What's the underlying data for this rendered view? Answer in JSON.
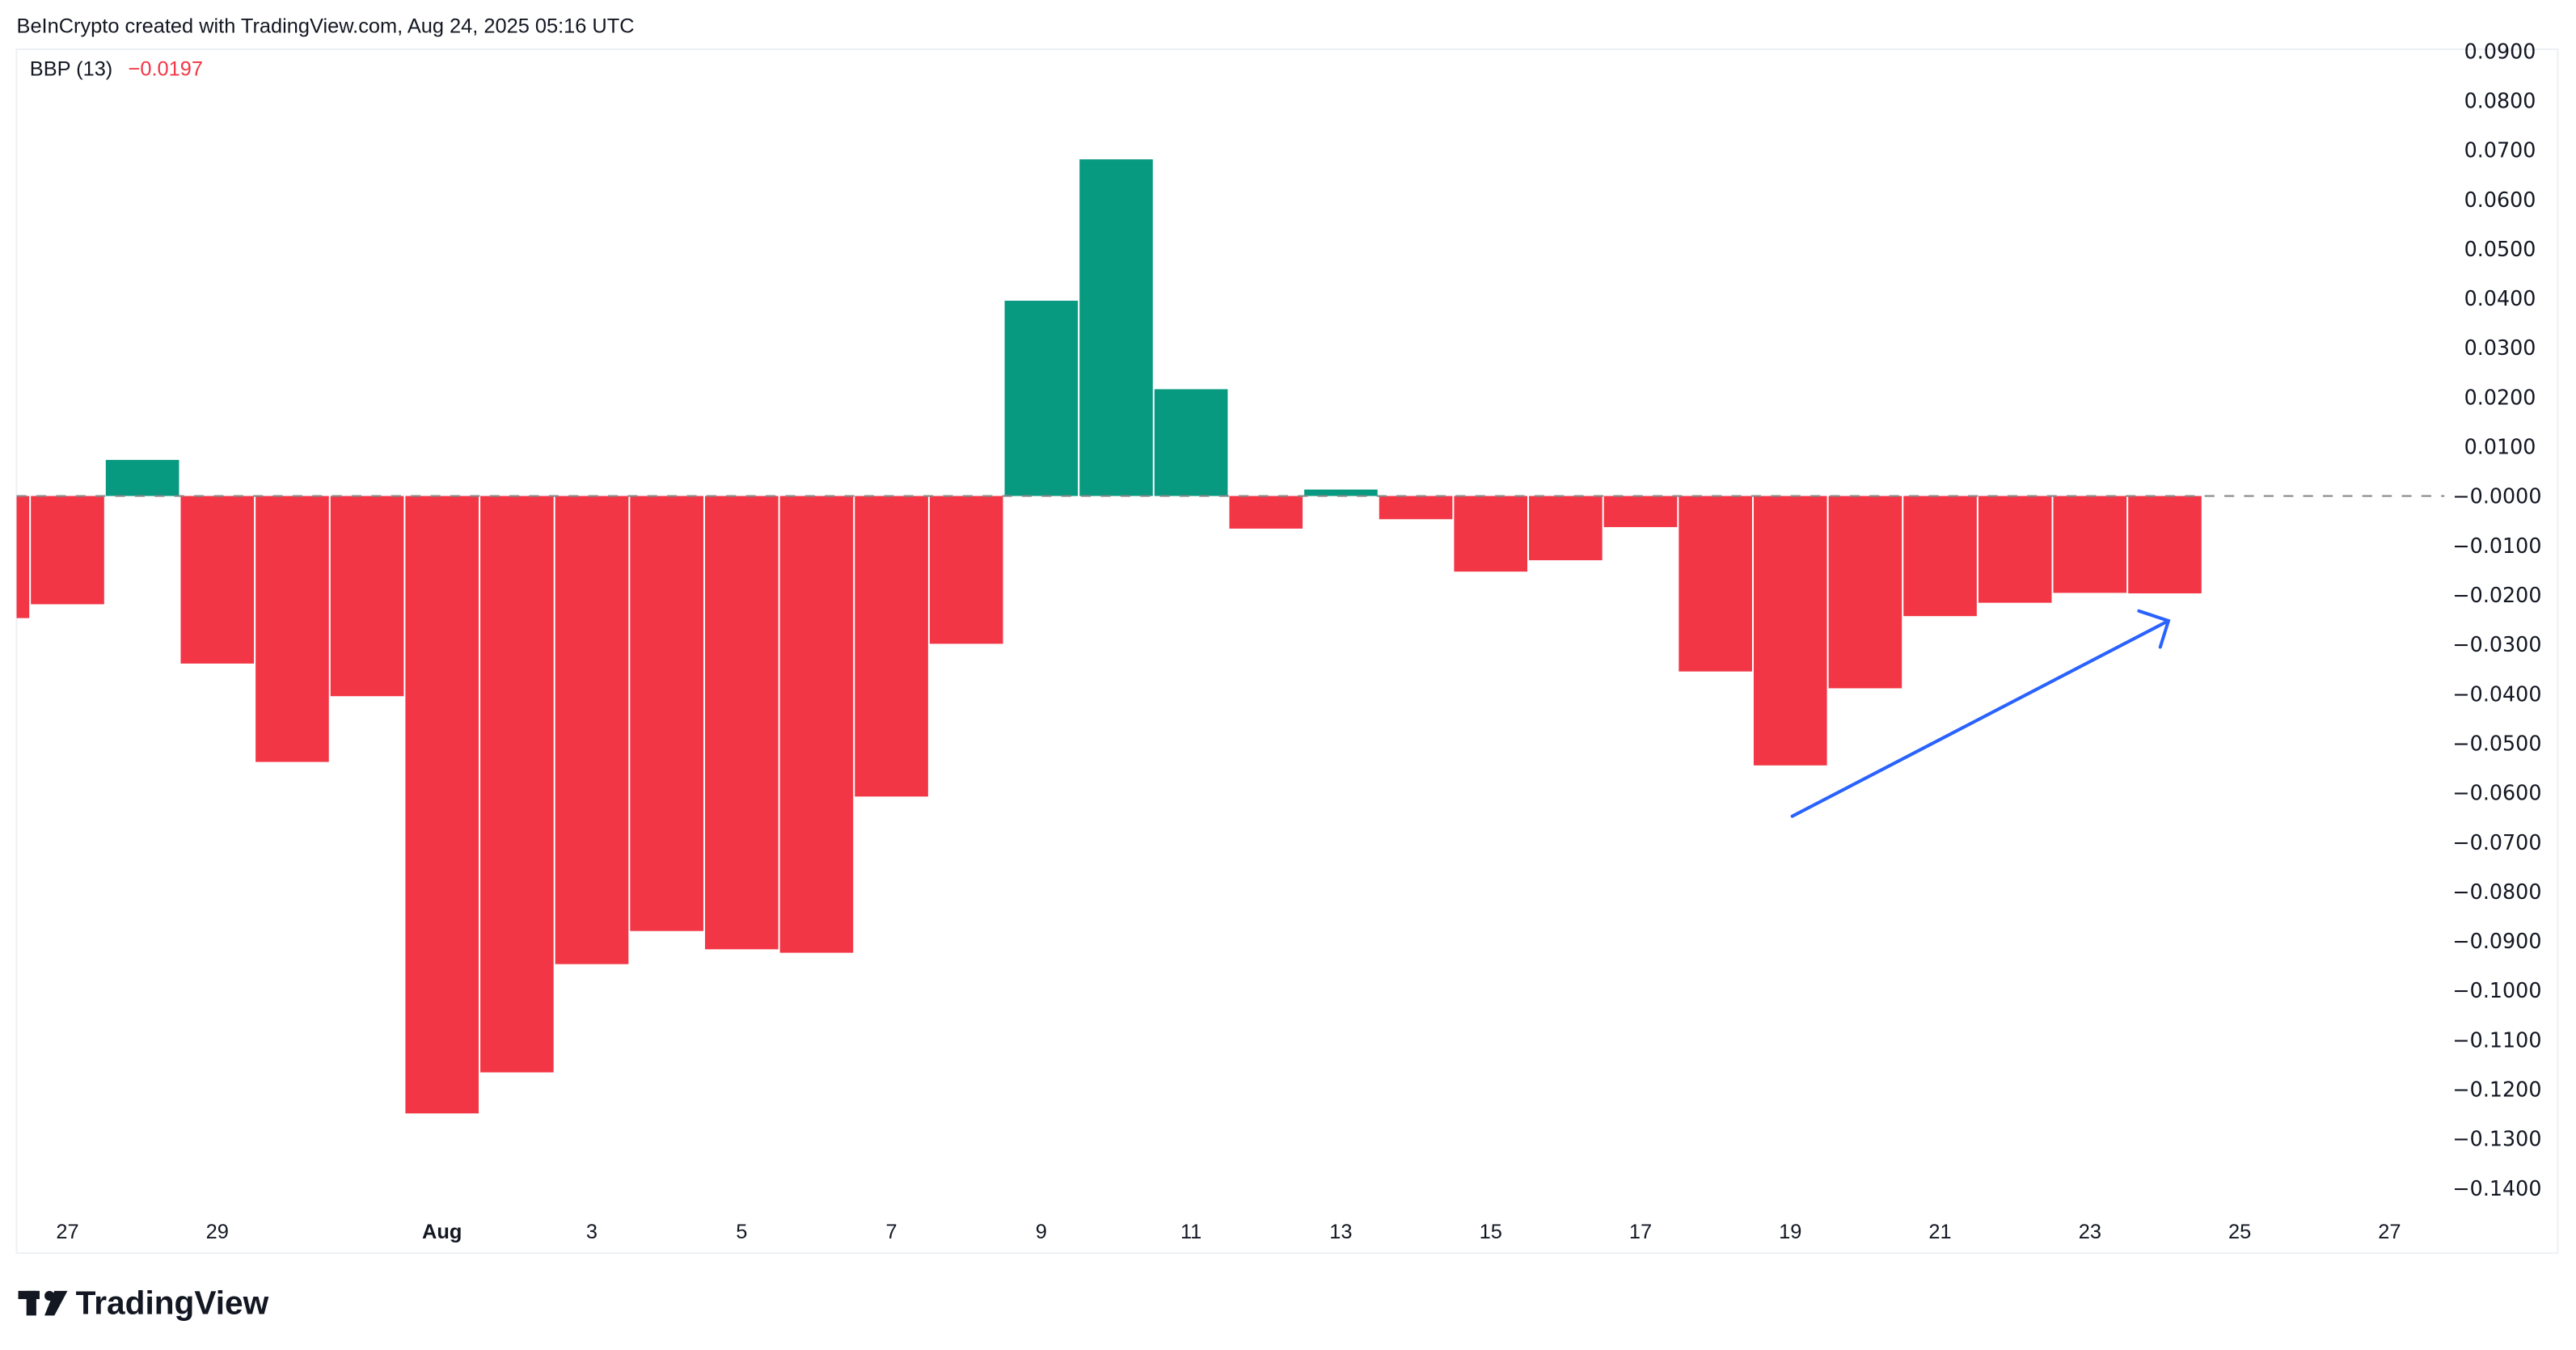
{
  "header": {
    "attribution": "BeInCrypto created with TradingView.com, Aug 24, 2025 05:16 UTC"
  },
  "legend": {
    "indicator": "BBP (13)",
    "value": "−0.0197",
    "value_color": "#F23645"
  },
  "footer": {
    "logo_text": "TradingView"
  },
  "colors": {
    "positive": "#089981",
    "negative": "#F23645",
    "annotation_arrow": "#2962FF",
    "zero_line": "#888888"
  },
  "chart_data": {
    "type": "bar",
    "title": "",
    "indicator": "BBP (13)",
    "dates": [
      "Jul 26",
      "Jul 27",
      "Jul 28",
      "Jul 29",
      "Jul 30",
      "Jul 31",
      "Aug 1",
      "Aug 2",
      "Aug 3",
      "Aug 4",
      "Aug 5",
      "Aug 6",
      "Aug 7",
      "Aug 8",
      "Aug 9",
      "Aug 10",
      "Aug 11",
      "Aug 12",
      "Aug 13",
      "Aug 14",
      "Aug 15",
      "Aug 16",
      "Aug 17",
      "Aug 18",
      "Aug 19",
      "Aug 20",
      "Aug 21",
      "Aug 22",
      "Aug 23",
      "Aug 24"
    ],
    "values": [
      -0.0247,
      -0.0219,
      0.0073,
      -0.0339,
      -0.0538,
      -0.0405,
      -0.1249,
      -0.1166,
      -0.0947,
      -0.088,
      -0.0917,
      -0.0924,
      -0.0608,
      -0.0299,
      0.0395,
      0.0681,
      0.0216,
      -0.0066,
      0.0013,
      -0.0047,
      -0.0153,
      -0.013,
      -0.0063,
      -0.0355,
      -0.0545,
      -0.0389,
      -0.0243,
      -0.0216,
      -0.0196,
      -0.0197
    ],
    "ylim": [
      -0.14,
      0.09
    ],
    "y_ticks": [
      "0.0900",
      "0.0800",
      "0.0700",
      "0.0600",
      "0.0500",
      "0.0400",
      "0.0300",
      "0.0200",
      "0.0100",
      "−0.0000",
      "−0.0100",
      "−0.0200",
      "−0.0300",
      "−0.0400",
      "−0.0500",
      "−0.0600",
      "−0.0700",
      "−0.0800",
      "−0.0900",
      "−0.1000",
      "−0.1100",
      "−0.1200",
      "−0.1300",
      "−0.1400"
    ],
    "x_ticks": [
      "27",
      "29",
      "Aug",
      "3",
      "5",
      "7",
      "9",
      "11",
      "13",
      "15",
      "17",
      "19",
      "21",
      "23",
      "25",
      "27"
    ],
    "zero_line": "dashed",
    "grid": false,
    "annotation": "upward arrow from Aug 19 toward Aug 24"
  }
}
